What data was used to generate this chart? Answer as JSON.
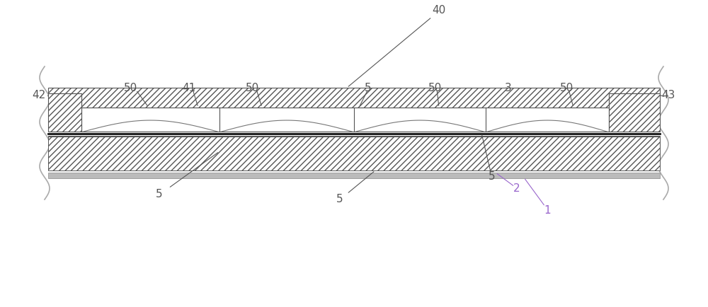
{
  "bg_color": "#ffffff",
  "lc": "#555555",
  "lc_dark": "#333333",
  "fig_w": 10.0,
  "fig_h": 4.34,
  "dpi": 100,
  "label_color": "#555555",
  "label_color_green": "#228B22",
  "label_color_purple": "#9966cc",
  "label_fontsize": 11
}
